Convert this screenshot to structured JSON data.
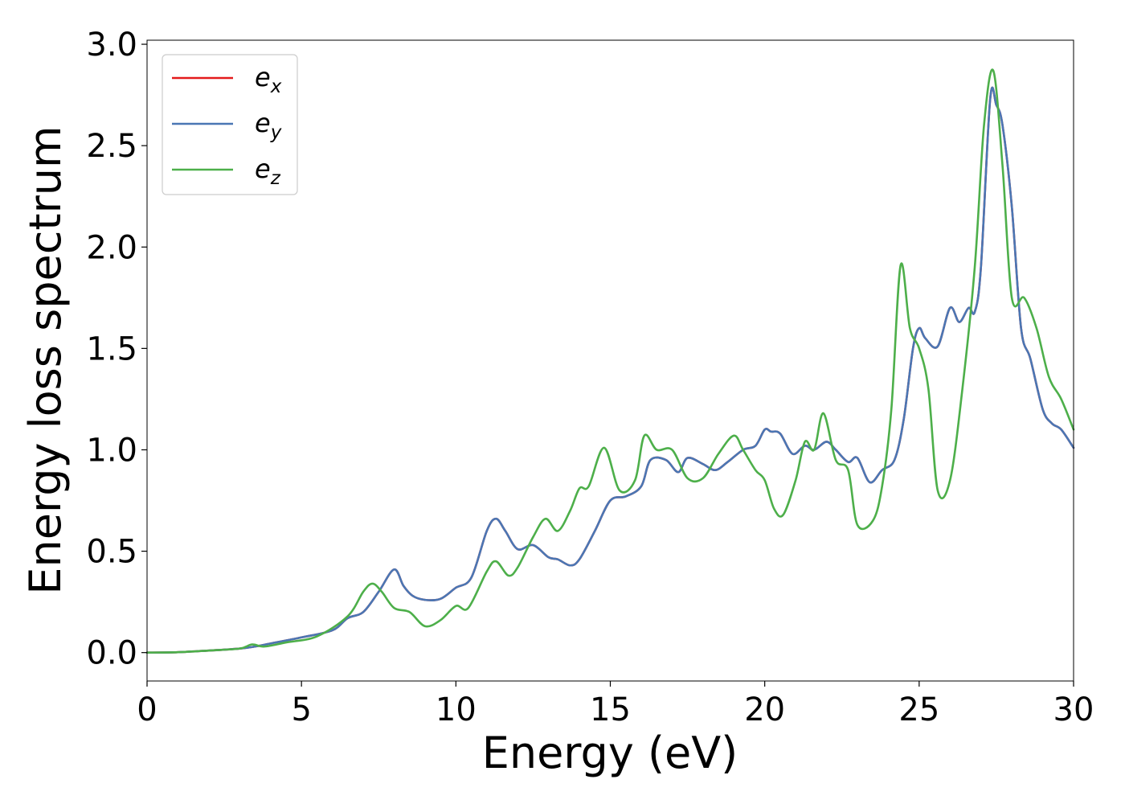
{
  "chart_data": {
    "type": "line",
    "title": "",
    "xlabel": "Energy (eV)",
    "ylabel": "Energy loss spectrum",
    "xlim": [
      0,
      30
    ],
    "ylim": [
      -0.14,
      3.02
    ],
    "xticks": [
      0,
      5,
      10,
      15,
      20,
      25,
      30
    ],
    "yticks": [
      0.0,
      0.5,
      1.0,
      1.5,
      2.0,
      2.5,
      3.0
    ],
    "xtick_labels": [
      "0",
      "5",
      "10",
      "15",
      "20",
      "25",
      "30"
    ],
    "ytick_labels": [
      "0.0",
      "0.5",
      "1.0",
      "1.5",
      "2.0",
      "2.5",
      "3.0"
    ],
    "grid": false,
    "legend_position": "top-left",
    "series": [
      {
        "name": "e_x",
        "legend_main": "e",
        "legend_sub": "x",
        "color": "#e41a1c",
        "x": [
          0,
          1,
          2,
          3,
          3.5,
          4,
          5,
          6,
          6.5,
          7,
          7.5,
          8,
          8.3,
          8.6,
          9,
          9.5,
          10,
          10.5,
          11,
          11.3,
          11.6,
          12,
          12.5,
          13,
          13.3,
          13.7,
          14,
          14.5,
          15,
          15.5,
          16,
          16.3,
          16.8,
          17.2,
          17.5,
          18,
          18.4,
          18.8,
          19.3,
          19.7,
          20,
          20.2,
          20.5,
          20.9,
          21.3,
          21.6,
          22,
          22.3,
          22.7,
          23,
          23.4,
          23.8,
          24.2,
          24.5,
          24.8,
          25.0,
          25.2,
          25.6,
          26.0,
          26.3,
          26.6,
          26.8,
          27.0,
          27.3,
          27.5,
          27.7,
          28.0,
          28.3,
          28.6,
          29.0,
          29.3,
          29.6,
          30
        ],
        "y": [
          0,
          0.002,
          0.01,
          0.02,
          0.03,
          0.045,
          0.075,
          0.11,
          0.17,
          0.2,
          0.3,
          0.41,
          0.33,
          0.28,
          0.26,
          0.265,
          0.32,
          0.37,
          0.6,
          0.66,
          0.6,
          0.51,
          0.53,
          0.47,
          0.46,
          0.43,
          0.46,
          0.6,
          0.75,
          0.77,
          0.82,
          0.95,
          0.95,
          0.89,
          0.96,
          0.93,
          0.9,
          0.94,
          1.0,
          1.02,
          1.1,
          1.09,
          1.08,
          0.98,
          1.02,
          1.0,
          1.04,
          1.0,
          0.94,
          0.96,
          0.84,
          0.9,
          0.95,
          1.15,
          1.5,
          1.6,
          1.55,
          1.51,
          1.7,
          1.63,
          1.7,
          1.68,
          1.9,
          2.73,
          2.7,
          2.6,
          2.2,
          1.6,
          1.45,
          1.2,
          1.13,
          1.1,
          1.01
        ]
      },
      {
        "name": "e_y",
        "legend_main": "e",
        "legend_sub": "y",
        "color": "#4a77b4",
        "x": [
          0,
          1,
          2,
          3,
          3.5,
          4,
          5,
          6,
          6.5,
          7,
          7.5,
          8,
          8.3,
          8.6,
          9,
          9.5,
          10,
          10.5,
          11,
          11.3,
          11.6,
          12,
          12.5,
          13,
          13.3,
          13.7,
          14,
          14.5,
          15,
          15.5,
          16,
          16.3,
          16.8,
          17.2,
          17.5,
          18,
          18.4,
          18.8,
          19.3,
          19.7,
          20,
          20.2,
          20.5,
          20.9,
          21.3,
          21.6,
          22,
          22.3,
          22.7,
          23,
          23.4,
          23.8,
          24.2,
          24.5,
          24.8,
          25.0,
          25.2,
          25.6,
          26.0,
          26.3,
          26.6,
          26.8,
          27.0,
          27.3,
          27.5,
          27.7,
          28.0,
          28.3,
          28.6,
          29.0,
          29.3,
          29.6,
          30
        ],
        "y": [
          0,
          0.002,
          0.01,
          0.02,
          0.03,
          0.045,
          0.075,
          0.11,
          0.17,
          0.2,
          0.3,
          0.41,
          0.33,
          0.28,
          0.26,
          0.265,
          0.32,
          0.37,
          0.6,
          0.66,
          0.6,
          0.51,
          0.53,
          0.47,
          0.46,
          0.43,
          0.46,
          0.6,
          0.75,
          0.77,
          0.82,
          0.95,
          0.95,
          0.89,
          0.96,
          0.93,
          0.9,
          0.94,
          1.0,
          1.02,
          1.1,
          1.09,
          1.08,
          0.98,
          1.02,
          1.0,
          1.04,
          1.0,
          0.94,
          0.96,
          0.84,
          0.9,
          0.95,
          1.15,
          1.5,
          1.6,
          1.55,
          1.51,
          1.7,
          1.63,
          1.7,
          1.68,
          1.9,
          2.73,
          2.7,
          2.6,
          2.2,
          1.6,
          1.45,
          1.2,
          1.13,
          1.1,
          1.01
        ]
      },
      {
        "name": "e_z",
        "legend_main": "e",
        "legend_sub": "z",
        "color": "#4daf4a",
        "x": [
          0,
          1,
          2,
          3,
          3.4,
          3.8,
          4.5,
          5.5,
          6.5,
          7,
          7.3,
          7.6,
          8,
          8.5,
          9,
          9.5,
          10,
          10.4,
          11,
          11.3,
          11.7,
          12,
          12.5,
          12.9,
          13.3,
          13.7,
          14,
          14.3,
          14.8,
          15.3,
          15.8,
          16.1,
          16.5,
          17,
          17.5,
          18,
          18.5,
          19,
          19.3,
          19.7,
          20,
          20.3,
          20.6,
          21.0,
          21.3,
          21.6,
          21.9,
          22.3,
          22.7,
          23,
          23.5,
          23.8,
          24.1,
          24.4,
          24.7,
          25.0,
          25.3,
          25.6,
          26.0,
          26.4,
          26.8,
          27.1,
          27.4,
          27.7,
          28.0,
          28.4,
          28.8,
          29.2,
          29.6,
          30
        ],
        "y": [
          0,
          0.002,
          0.01,
          0.02,
          0.04,
          0.03,
          0.05,
          0.08,
          0.18,
          0.3,
          0.34,
          0.3,
          0.22,
          0.2,
          0.13,
          0.16,
          0.23,
          0.22,
          0.4,
          0.45,
          0.38,
          0.42,
          0.57,
          0.66,
          0.6,
          0.7,
          0.81,
          0.82,
          1.01,
          0.8,
          0.85,
          1.07,
          1.0,
          1.0,
          0.86,
          0.86,
          0.98,
          1.07,
          1.0,
          0.9,
          0.85,
          0.71,
          0.68,
          0.85,
          1.04,
          1.0,
          1.18,
          0.95,
          0.9,
          0.63,
          0.65,
          0.82,
          1.2,
          1.91,
          1.6,
          1.5,
          1.3,
          0.8,
          0.85,
          1.3,
          1.9,
          2.6,
          2.87,
          2.4,
          1.75,
          1.75,
          1.6,
          1.36,
          1.25,
          1.1
        ]
      }
    ]
  }
}
